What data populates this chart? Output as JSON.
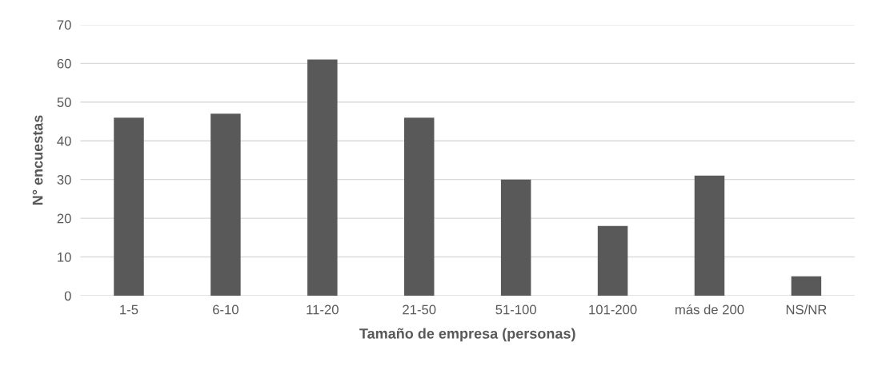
{
  "chart_data": {
    "type": "bar",
    "xlabel": "Tamaño de empresa (personas)",
    "ylabel": "N° encuestas",
    "categories": [
      "1-5",
      "6-10",
      "11-20",
      "21-50",
      "51-100",
      "101-200",
      "más de 200",
      "NS/NR"
    ],
    "values": [
      46,
      47,
      61,
      46,
      30,
      18,
      31,
      5
    ],
    "color": "#595959",
    "ylim": [
      0,
      70
    ],
    "yticks": [
      0,
      10,
      20,
      30,
      40,
      50,
      60,
      70
    ],
    "grid": "y",
    "legend": false
  }
}
